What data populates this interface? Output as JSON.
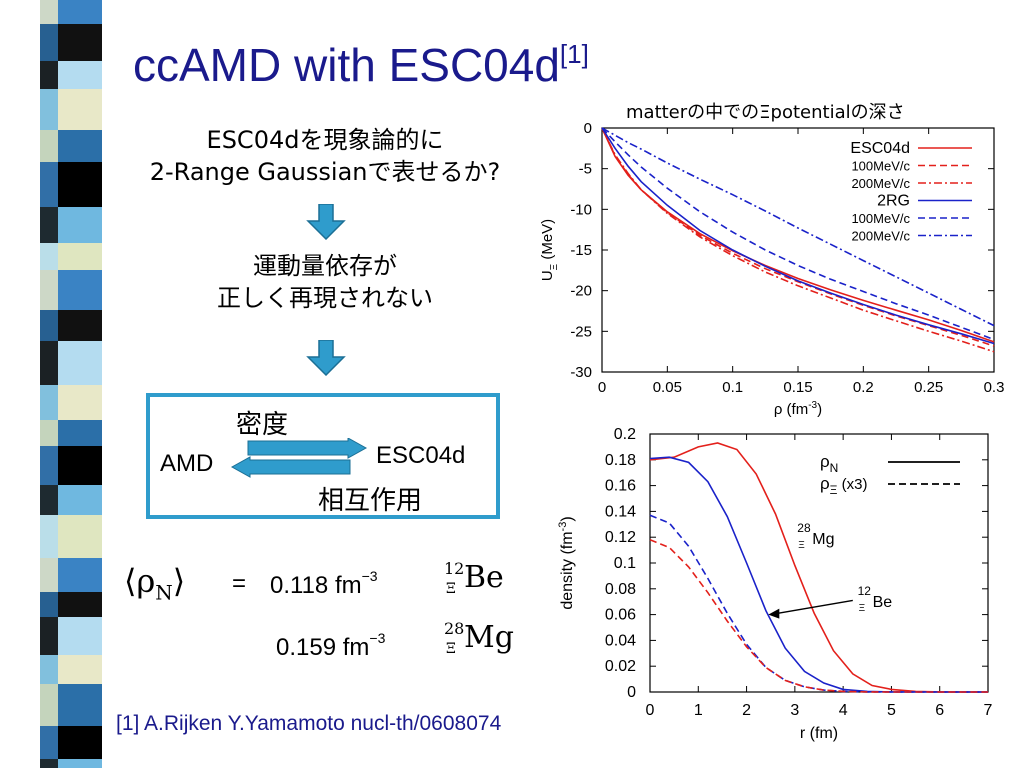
{
  "slide": {
    "title": "ccAMD with ESC04d",
    "title_ref": "[1]",
    "question_lines": [
      "ESC04dを現象論的に",
      "2-Range Gaussianで表せるか?"
    ],
    "answer_lines": [
      "運動量依存が",
      "正しく再現されない"
    ],
    "box_top": "密度",
    "box_left": "AMD",
    "box_right": "ESC04d",
    "box_bottom": "相互作用",
    "density_symbol": "⟨ρ",
    "density_symbol_sub": "N",
    "density_symbol_close": "⟩",
    "equals": "=",
    "value1": "0.118 fm",
    "value2": "0.159 fm",
    "unit_exp": "−3",
    "nucleus1_mass": "12",
    "nucleus1_xi": "Ξ",
    "nucleus1_name": "Be",
    "nucleus2_mass": "28",
    "nucleus2_xi": "Ξ",
    "nucleus2_name": "Mg",
    "citation": "[1] A.Rijken Y.Yamamoto nucl-th/0608074"
  },
  "colors": {
    "title": "#1a1a8c",
    "box_border": "#2f9ccc",
    "arrow": "#2f9ccc",
    "red": "#e3201b",
    "blue": "#1a22c9"
  },
  "chart_data": [
    {
      "type": "line",
      "title": "matterの中でのΞpotentialの深さ",
      "xlabel": "ρ (fm",
      "xlabel_exp": "-3",
      "xlabel_close": ")",
      "ylabel": "U",
      "ylabel_sub": "Ξ",
      "ylabel_unit": " (MeV)",
      "xlim": [
        0,
        0.3
      ],
      "ylim": [
        -30,
        0
      ],
      "xticks": [
        "0",
        "0.05",
        "0.1",
        "0.15",
        "0.2",
        "0.25",
        "0.3"
      ],
      "yticks": [
        "0",
        "-5",
        "-10",
        "-15",
        "-20",
        "-25",
        "-30"
      ],
      "grid": false,
      "legend_position": "top-right",
      "series": [
        {
          "name": "ESC04d",
          "color": "#e3201b",
          "style": "solid",
          "x": [
            0,
            0.01,
            0.02,
            0.03,
            0.05,
            0.075,
            0.1,
            0.125,
            0.15,
            0.175,
            0.2,
            0.225,
            0.25,
            0.275,
            0.3
          ],
          "y": [
            0,
            -3.5,
            -5.8,
            -7.6,
            -10.3,
            -13.0,
            -15.1,
            -16.9,
            -18.5,
            -19.9,
            -21.2,
            -22.4,
            -23.6,
            -24.9,
            -26.3
          ]
        },
        {
          "name": "100MeV/c",
          "color": "#e3201b",
          "style": "dashed",
          "x": [
            0,
            0.01,
            0.02,
            0.03,
            0.05,
            0.075,
            0.1,
            0.125,
            0.15,
            0.175,
            0.2,
            0.225,
            0.25,
            0.275,
            0.3
          ],
          "y": [
            0,
            -3.4,
            -5.7,
            -7.6,
            -10.4,
            -13.2,
            -15.4,
            -17.3,
            -18.9,
            -20.4,
            -21.8,
            -23.1,
            -24.3,
            -25.5,
            -26.8
          ]
        },
        {
          "name": "200MeV/c",
          "color": "#e3201b",
          "style": "dashdot",
          "x": [
            0,
            0.01,
            0.02,
            0.03,
            0.05,
            0.075,
            0.1,
            0.125,
            0.15,
            0.175,
            0.2,
            0.225,
            0.25,
            0.275,
            0.3
          ],
          "y": [
            0,
            -3.3,
            -5.6,
            -7.6,
            -10.5,
            -13.4,
            -15.7,
            -17.7,
            -19.4,
            -20.9,
            -22.4,
            -23.7,
            -25.0,
            -26.2,
            -27.5
          ]
        },
        {
          "name": "2RG",
          "color": "#1a22c9",
          "style": "solid",
          "x": [
            0,
            0.01,
            0.02,
            0.03,
            0.05,
            0.075,
            0.1,
            0.125,
            0.15,
            0.175,
            0.2,
            0.225,
            0.25,
            0.275,
            0.3
          ],
          "y": [
            0,
            -2.5,
            -4.7,
            -6.6,
            -9.5,
            -12.6,
            -15.0,
            -17.0,
            -18.8,
            -20.3,
            -21.7,
            -23.0,
            -24.2,
            -25.3,
            -26.5
          ]
        },
        {
          "name": "100MeV/c",
          "color": "#1a22c9",
          "style": "dashed",
          "x": [
            0,
            0.01,
            0.02,
            0.03,
            0.05,
            0.075,
            0.1,
            0.125,
            0.15,
            0.175,
            0.2,
            0.225,
            0.25,
            0.275,
            0.3
          ],
          "y": [
            0,
            -1.7,
            -3.3,
            -4.8,
            -7.4,
            -10.3,
            -12.8,
            -15.0,
            -16.9,
            -18.6,
            -20.1,
            -21.6,
            -23.0,
            -24.5,
            -26.0
          ]
        },
        {
          "name": "200MeV/c",
          "color": "#1a22c9",
          "style": "dashdot",
          "x": [
            0,
            0.01,
            0.02,
            0.03,
            0.05,
            0.075,
            0.1,
            0.125,
            0.15,
            0.175,
            0.2,
            0.225,
            0.25,
            0.275,
            0.3
          ],
          "y": [
            0,
            -0.9,
            -1.8,
            -2.6,
            -4.3,
            -6.3,
            -8.2,
            -10.2,
            -12.3,
            -14.3,
            -16.3,
            -18.3,
            -20.3,
            -22.3,
            -24.3
          ]
        }
      ]
    },
    {
      "type": "line",
      "xlabel": "r (fm)",
      "ylabel": "density (fm",
      "ylabel_exp": "-3",
      "ylabel_close": ")",
      "xlim": [
        0,
        7
      ],
      "ylim": [
        0,
        0.2
      ],
      "xticks": [
        "0",
        "1",
        "2",
        "3",
        "4",
        "5",
        "6",
        "7"
      ],
      "yticks": [
        "0",
        "0.02",
        "0.04",
        "0.06",
        "0.08",
        "0.1",
        "0.12",
        "0.14",
        "0.16",
        "0.18",
        "0.2"
      ],
      "grid": false,
      "legend_position": "top-right",
      "legend": [
        {
          "label": "ρ",
          "label_sub": "N",
          "style": "solid"
        },
        {
          "label": "ρ",
          "label_sub": "Ξ",
          "label_suffix": " (x3)",
          "style": "dashed"
        }
      ],
      "annotations": [
        {
          "mass": "28",
          "xi": "Ξ",
          "name": "Mg"
        },
        {
          "mass": "12",
          "xi": "Ξ",
          "name": "Be"
        }
      ],
      "series": [
        {
          "nucleus": "Mg",
          "color": "#e3201b",
          "style": "solid",
          "x": [
            0,
            0.5,
            1,
            1.4,
            1.8,
            2.2,
            2.6,
            3,
            3.4,
            3.8,
            4.2,
            4.6,
            5,
            5.5,
            6,
            7
          ],
          "y": [
            0.18,
            0.182,
            0.19,
            0.193,
            0.188,
            0.169,
            0.138,
            0.098,
            0.061,
            0.032,
            0.014,
            0.005,
            0.002,
            0.0005,
            0.0001,
            0
          ]
        },
        {
          "nucleus": "Be",
          "color": "#1a22c9",
          "style": "solid",
          "x": [
            0,
            0.4,
            0.8,
            1.2,
            1.6,
            2,
            2.4,
            2.8,
            3.2,
            3.6,
            4,
            4.5,
            5,
            6,
            7
          ],
          "y": [
            0.181,
            0.182,
            0.178,
            0.163,
            0.136,
            0.1,
            0.063,
            0.034,
            0.016,
            0.007,
            0.002,
            0.0005,
            0.0001,
            0,
            0
          ]
        },
        {
          "nucleus": "Mg",
          "color": "#1a22c9",
          "style": "dashed",
          "x": [
            0,
            0.4,
            0.8,
            1.2,
            1.6,
            2,
            2.4,
            2.8,
            3.2,
            3.6,
            4,
            4.5,
            5,
            6,
            7
          ],
          "y": [
            0.137,
            0.131,
            0.113,
            0.088,
            0.061,
            0.037,
            0.019,
            0.009,
            0.004,
            0.0015,
            0.0005,
            0.0001,
            0,
            0,
            0
          ]
        },
        {
          "nucleus": "Be",
          "color": "#e3201b",
          "style": "dashed",
          "x": [
            0,
            0.4,
            0.8,
            1.2,
            1.6,
            2,
            2.4,
            2.8,
            3.2,
            3.6,
            4,
            4.5,
            5,
            6,
            7
          ],
          "y": [
            0.118,
            0.112,
            0.097,
            0.077,
            0.055,
            0.035,
            0.019,
            0.009,
            0.004,
            0.0015,
            0.0005,
            0.0001,
            0,
            0,
            0
          ]
        }
      ]
    }
  ]
}
